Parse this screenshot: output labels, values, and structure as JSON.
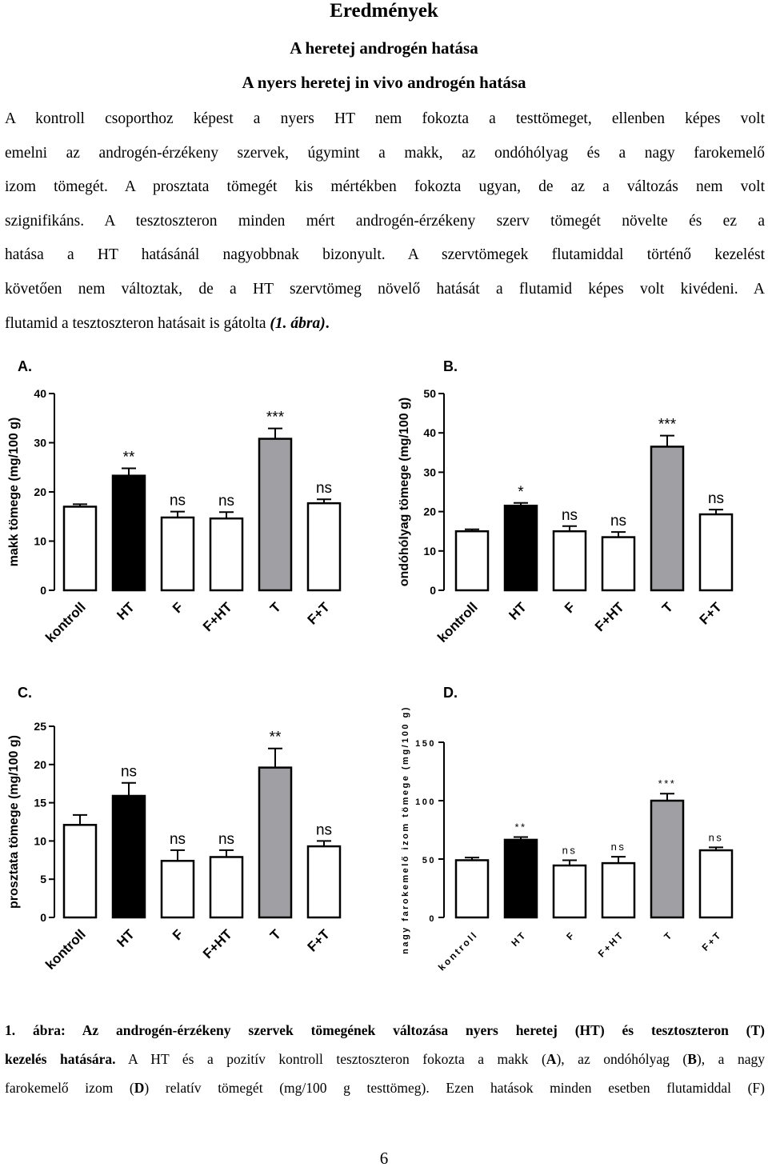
{
  "heading": {
    "title": "Eredmények",
    "subtitle1": "A heretej androgén hatása",
    "subtitle2": "A nyers heretej in vivo androgén hatása"
  },
  "paragraph": {
    "lines": [
      "A kontroll csoporthoz képest a nyers HT nem fokozta a testtömeget, ellenben képes volt",
      "emelni az androgén-érzékeny szervek, úgymint a makk, az ondóhólyag és a nagy farokemelő",
      "izom tömegét. A prosztata tömegét kis mértékben fokozta ugyan, de az a változás nem volt",
      "szignifikáns. A tesztoszteron minden mért androgén-érzékeny szerv tömegét növelte és ez a",
      "hatása a HT hatásánál nagyobbnak bizonyult. A szervtömegek flutamiddal történő kezelést",
      "követően nem változtak, de a HT szervtömeg növelő hatását a flutamid képes volt kivédeni. A"
    ],
    "last_line_prefix": "flutamid a tesztoszteron hatásait is gátolta ",
    "last_line_ref": "(1. ábra)",
    "last_line_end": "."
  },
  "chart_data": [
    {
      "panel": "A.",
      "type": "bar",
      "categories": [
        "kontroll",
        "HT",
        "F",
        "F+HT",
        "T",
        "F+T"
      ],
      "values": [
        17,
        23.3,
        14.8,
        14.6,
        30.8,
        17.7
      ],
      "errors": [
        0.5,
        1.5,
        1.2,
        1.3,
        2.1,
        0.8
      ],
      "significance": [
        "",
        "**",
        "ns",
        "ns",
        "***",
        "ns"
      ],
      "bar_colors": [
        "#ffffff",
        "#000000",
        "#ffffff",
        "#ffffff",
        "#a0a0a4",
        "#ffffff"
      ],
      "ylabel": "makk tömege (mg/100 g)",
      "ylim": [
        0,
        40
      ],
      "yticks": [
        "0",
        "10",
        "20",
        "30",
        "40"
      ],
      "spaced": false
    },
    {
      "panel": "B.",
      "type": "bar",
      "categories": [
        "kontroll",
        "HT",
        "F",
        "F+HT",
        "T",
        "F+T"
      ],
      "values": [
        15,
        21.5,
        15,
        13.5,
        36.5,
        19.3
      ],
      "errors": [
        0.5,
        0.7,
        1.3,
        1.3,
        2.8,
        1.2
      ],
      "significance": [
        "",
        "*",
        "ns",
        "ns",
        "***",
        "ns"
      ],
      "bar_colors": [
        "#ffffff",
        "#000000",
        "#ffffff",
        "#ffffff",
        "#a0a0a4",
        "#ffffff"
      ],
      "ylabel": "ondóhólyag tömege (mg/100 g)",
      "ylim": [
        0,
        50
      ],
      "yticks": [
        "0",
        "10",
        "20",
        "30",
        "40",
        "50"
      ],
      "spaced": false
    },
    {
      "panel": "C.",
      "type": "bar",
      "categories": [
        "kontroll",
        "HT",
        "F",
        "F+HT",
        "T",
        "F+T"
      ],
      "values": [
        12.1,
        15.9,
        7.4,
        7.9,
        19.6,
        9.3
      ],
      "errors": [
        1.3,
        1.7,
        1.4,
        0.9,
        2.5,
        0.7
      ],
      "significance": [
        "",
        "ns",
        "ns",
        "ns",
        "**",
        "ns"
      ],
      "bar_colors": [
        "#ffffff",
        "#000000",
        "#ffffff",
        "#ffffff",
        "#a0a0a4",
        "#ffffff"
      ],
      "ylabel": "prosztata tömege (mg/100 g)",
      "ylim": [
        0,
        25
      ],
      "yticks": [
        "0",
        "5",
        "10",
        "15",
        "20",
        "25"
      ],
      "spaced": false
    },
    {
      "panel": "D.",
      "type": "bar",
      "categories": [
        "kontroll",
        "HT",
        "F",
        "F+HT",
        "T",
        "F+T"
      ],
      "values": [
        49,
        66.5,
        44.5,
        46.5,
        100,
        57.5
      ],
      "errors": [
        2.3,
        2.3,
        4.5,
        5.5,
        6.0,
        2.5
      ],
      "significance": [
        "",
        "**",
        "ns",
        "ns",
        "***",
        "ns"
      ],
      "bar_colors": [
        "#ffffff",
        "#000000",
        "#ffffff",
        "#ffffff",
        "#a0a0a4",
        "#ffffff"
      ],
      "ylabel": "nagy farokemelő izom tömege (mg/100 g)",
      "ylim": [
        0,
        150
      ],
      "yticks": [
        "0",
        "50",
        "100",
        "150"
      ],
      "spaced": true
    }
  ],
  "caption": {
    "line1": "1. ábra: Az androgén-érzékeny szervek tömegének változása nyers heretej (HT) és tesztoszteron (T)",
    "line2_bold": "kezelés hatására.",
    "line2_a": " A HT és a pozitív kontroll tesztoszteron fokozta a makk (",
    "line2_A": "A",
    "line2_b": "), az ondóhólyag (",
    "line2_B": "B",
    "line2_c": "), a nagy",
    "line3_a": "farokemelő izom (",
    "line3_D": "D",
    "line3_b": ") relatív tömegét (mg/100 g testtömeg). Ezen hatások minden esetben flutamiddal (F)"
  },
  "page_number": "6"
}
